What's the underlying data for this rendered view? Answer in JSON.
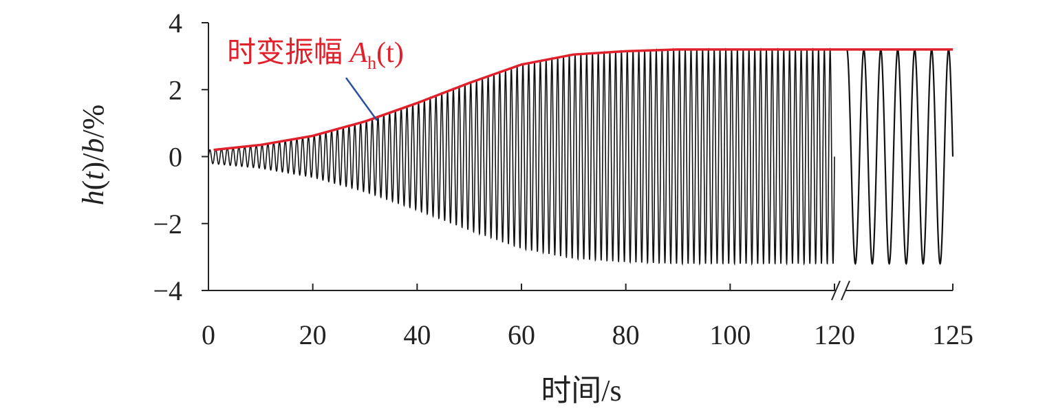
{
  "chart_data": {
    "type": "line",
    "xlabel": "时间/s",
    "ylabel": "h(t)/b/%",
    "ylim": [
      -4,
      4
    ],
    "y_ticks": [
      "4",
      "2",
      "0",
      "−2",
      "−4"
    ],
    "y_tick_values": [
      4,
      2,
      0,
      -2,
      -4
    ],
    "x_ticks": [
      "0",
      "20",
      "40",
      "60",
      "80",
      "100",
      "120",
      "125"
    ],
    "x_tick_values": [
      0,
      20,
      40,
      60,
      80,
      100,
      120,
      125
    ],
    "x_axis_break_between": [
      120,
      125
    ],
    "grid": false,
    "colors": {
      "signal": "#111111",
      "envelope": "#e0202a",
      "pointer": "#2a4f9c"
    },
    "series": [
      {
        "role": "signal",
        "description_values": "oscillating response, frequency approx. 0.9 Hz in 0–120 s segment",
        "amplitude_points": [
          [
            0,
            0.2
          ],
          [
            10,
            0.35
          ],
          [
            20,
            0.62
          ],
          [
            30,
            1.05
          ],
          [
            40,
            1.6
          ],
          [
            50,
            2.2
          ],
          [
            60,
            2.75
          ],
          [
            70,
            3.05
          ],
          [
            80,
            3.15
          ],
          [
            90,
            3.2
          ],
          [
            100,
            3.2
          ],
          [
            120,
            3.2
          ],
          [
            125,
            3.2
          ]
        ],
        "zoom_segment_cycles": 6
      },
      {
        "name": "时变振幅 A",
        "role": "envelope",
        "points": [
          [
            1,
            0.2
          ],
          [
            10,
            0.35
          ],
          [
            20,
            0.62
          ],
          [
            30,
            1.05
          ],
          [
            40,
            1.6
          ],
          [
            50,
            2.2
          ],
          [
            60,
            2.75
          ],
          [
            70,
            3.05
          ],
          [
            80,
            3.15
          ],
          [
            90,
            3.2
          ],
          [
            100,
            3.2
          ],
          [
            120,
            3.2
          ],
          [
            125,
            3.2
          ]
        ]
      }
    ],
    "annotation": {
      "text": "时变振幅 ",
      "symbol": "A",
      "subscript": "h",
      "suffix": "(t)",
      "points_to_x": 32
    }
  }
}
